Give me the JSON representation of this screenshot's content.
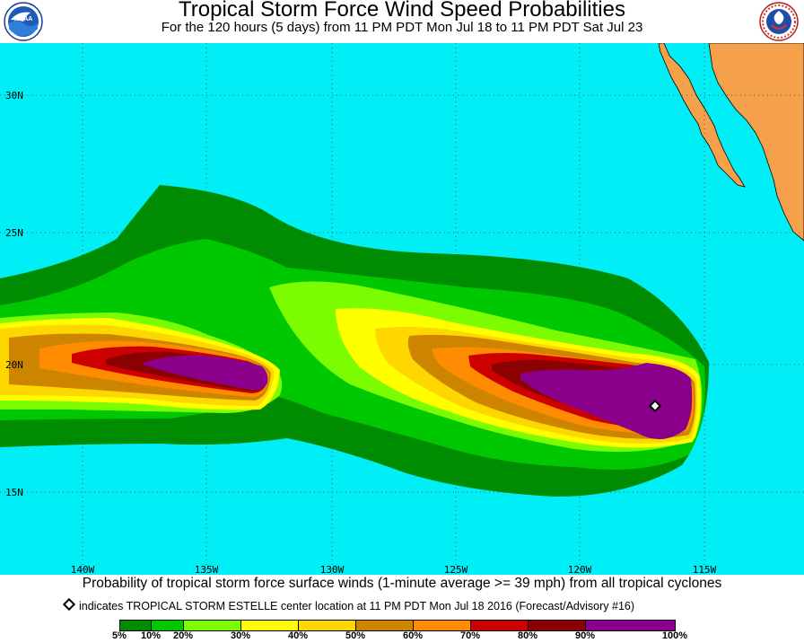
{
  "header": {
    "title": "Tropical Storm Force Wind Speed Probabilities",
    "subtitle": "For the 120 hours (5 days) from 11 PM PDT Mon Jul 18 to 11 PM PDT Sat Jul 23"
  },
  "logos": {
    "left": "noaa-logo",
    "left_text": "NOAA",
    "right": "national-weather-service-logo",
    "right_text": "NATIONAL WEATHER SERVICE"
  },
  "map": {
    "ocean_color": "#00EEF5",
    "land_color": "#F5A04B",
    "lat_labels": [
      "30N",
      "25N",
      "20N",
      "15N"
    ],
    "lon_labels": [
      "140W",
      "135W",
      "130W",
      "125W",
      "120W",
      "115W"
    ],
    "storm_marker": "diamond"
  },
  "caption": "Probability of tropical storm force surface winds (1-minute average >= 39 mph) from all tropical cyclones",
  "legend_note": "indicates TROPICAL STORM ESTELLE center location at 11 PM PDT Mon Jul 18 2016 (Forecast/Advisory #16)",
  "scale": {
    "colors": [
      "#008C00",
      "#00C800",
      "#7CFC00",
      "#FFFF00",
      "#FFD700",
      "#CD8500",
      "#FF8C00",
      "#CD0000",
      "#8B0000",
      "#8B008B"
    ],
    "labels": [
      "5%",
      "10%",
      "20%",
      "30%",
      "40%",
      "50%",
      "60%",
      "70%",
      "80%",
      "90%",
      "100%"
    ]
  }
}
